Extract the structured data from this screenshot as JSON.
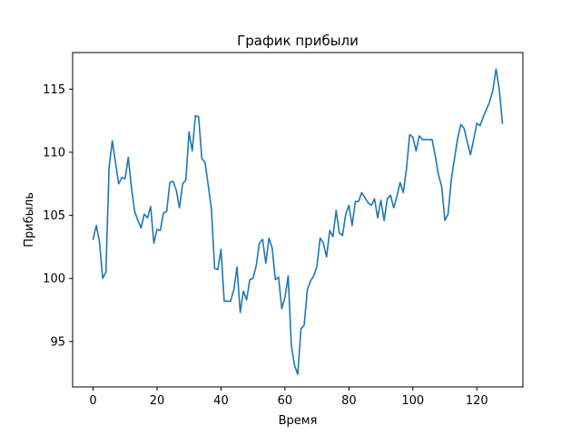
{
  "chart_data": {
    "type": "line",
    "title": "График прибыли",
    "xlabel": "Время",
    "ylabel": "Прибыль",
    "xlim": [
      -6.4,
      134.4
    ],
    "ylim": [
      91.4,
      117.9
    ],
    "xticks": [
      0,
      20,
      40,
      60,
      80,
      100,
      120
    ],
    "yticks": [
      95,
      100,
      105,
      110,
      115
    ],
    "grid": false,
    "series": [
      {
        "color": "#1f77b4",
        "x": [
          0,
          1,
          2,
          3,
          4,
          5,
          6,
          7,
          8,
          9,
          10,
          11,
          12,
          13,
          14,
          15,
          16,
          17,
          18,
          19,
          20,
          21,
          22,
          23,
          24,
          25,
          26,
          27,
          28,
          29,
          30,
          31,
          32,
          33,
          34,
          35,
          36,
          37,
          38,
          39,
          40,
          41,
          42,
          43,
          44,
          45,
          46,
          47,
          48,
          49,
          50,
          51,
          52,
          53,
          54,
          55,
          56,
          57,
          58,
          59,
          60,
          61,
          62,
          63,
          64,
          65,
          66,
          67,
          68,
          69,
          70,
          71,
          72,
          73,
          74,
          75,
          76,
          77,
          78,
          79,
          80,
          81,
          82,
          83,
          84,
          85,
          86,
          87,
          88,
          89,
          90,
          91,
          92,
          93,
          94,
          95,
          96,
          97,
          98,
          99,
          100,
          101,
          102,
          103,
          104,
          105,
          106,
          107,
          108,
          109,
          110,
          111,
          112,
          113,
          114,
          115,
          116,
          117,
          118,
          119,
          120,
          121,
          122,
          123,
          124,
          125,
          126,
          127,
          128
        ],
        "values": [
          103.1,
          104.2,
          102.9,
          100.0,
          100.5,
          108.8,
          110.9,
          109.2,
          107.5,
          108.0,
          107.9,
          109.6,
          107.2,
          105.3,
          104.6,
          104.0,
          105.1,
          104.8,
          105.7,
          102.8,
          103.9,
          103.8,
          105.2,
          105.3,
          107.6,
          107.7,
          107.0,
          105.6,
          107.5,
          107.8,
          111.6,
          110.1,
          112.9,
          112.8,
          109.5,
          109.2,
          107.4,
          105.5,
          100.8,
          100.7,
          102.3,
          98.2,
          98.2,
          98.2,
          99.1,
          100.9,
          97.3,
          99.0,
          98.3,
          99.9,
          100.0,
          101.0,
          102.8,
          103.1,
          101.2,
          103.2,
          102.4,
          99.9,
          100.1,
          97.6,
          98.5,
          100.2,
          94.7,
          93.1,
          92.4,
          96.0,
          96.3,
          99.1,
          99.8,
          100.2,
          101.0,
          103.2,
          102.8,
          101.7,
          103.8,
          103.3,
          105.4,
          103.6,
          103.4,
          105.1,
          105.8,
          104.2,
          106.1,
          106.1,
          106.8,
          106.4,
          106.0,
          105.8,
          106.3,
          104.8,
          106.2,
          104.6,
          106.3,
          106.6,
          105.6,
          106.5,
          107.6,
          106.8,
          108.7,
          111.4,
          111.2,
          110.1,
          111.3,
          111.0,
          111.0,
          111.0,
          111.0,
          109.7,
          108.2,
          107.3,
          104.6,
          105.1,
          107.8,
          109.5,
          111.1,
          112.2,
          111.9,
          110.8,
          109.8,
          111.0,
          112.3,
          112.1,
          112.8,
          113.4,
          114.0,
          114.9,
          116.6,
          115.0,
          112.3
        ]
      }
    ]
  }
}
